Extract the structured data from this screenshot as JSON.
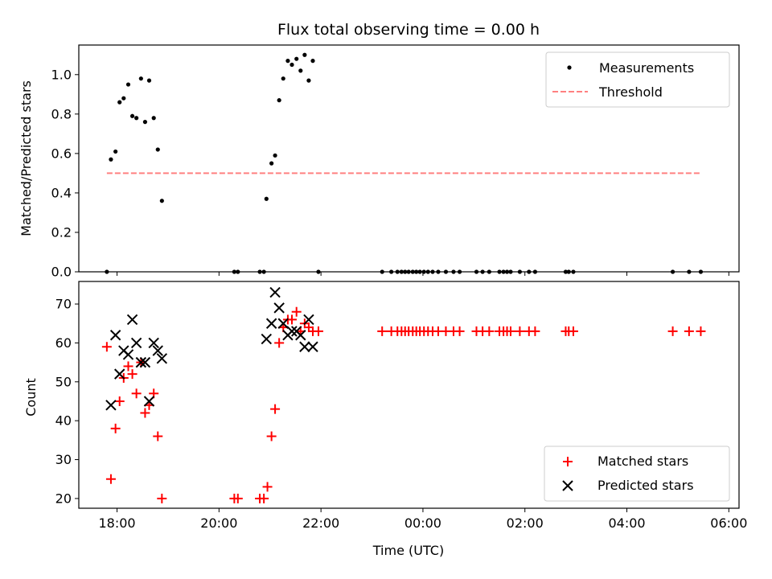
{
  "chart_data": [
    {
      "type": "scatter",
      "title": "Flux total observing time = 0.00 h",
      "xlabel": "",
      "ylabel": "Matched/Predicted stars",
      "xlim": [
        -0.75,
        12.2
      ],
      "ylim": [
        0.0,
        1.15
      ],
      "yticks": [
        0.0,
        0.2,
        0.4,
        0.6,
        0.8,
        1.0
      ],
      "ytick_labels": [
        "0.0",
        "0.2",
        "0.4",
        "0.6",
        "0.8",
        "1.0"
      ],
      "legend_position": "top-right",
      "series": [
        {
          "name": "Measurements",
          "marker": "dot",
          "color": "#000000",
          "points": [
            [
              -0.2,
              0.0
            ],
            [
              -0.12,
              0.57
            ],
            [
              -0.03,
              0.61
            ],
            [
              0.05,
              0.86
            ],
            [
              0.13,
              0.88
            ],
            [
              0.22,
              0.95
            ],
            [
              0.3,
              0.79
            ],
            [
              0.38,
              0.78
            ],
            [
              0.47,
              0.98
            ],
            [
              0.55,
              0.76
            ],
            [
              0.63,
              0.97
            ],
            [
              0.72,
              0.78
            ],
            [
              0.8,
              0.62
            ],
            [
              0.88,
              0.36
            ],
            [
              2.3,
              0.0
            ],
            [
              2.37,
              0.0
            ],
            [
              2.8,
              0.0
            ],
            [
              2.88,
              0.0
            ],
            [
              2.93,
              0.37
            ],
            [
              3.03,
              0.55
            ],
            [
              3.1,
              0.59
            ],
            [
              3.18,
              0.87
            ],
            [
              3.26,
              0.98
            ],
            [
              3.35,
              1.07
            ],
            [
              3.43,
              1.05
            ],
            [
              3.52,
              1.08
            ],
            [
              3.6,
              1.02
            ],
            [
              3.68,
              1.1
            ],
            [
              3.76,
              0.97
            ],
            [
              3.84,
              1.07
            ],
            [
              3.95,
              0.0
            ],
            [
              5.2,
              0.0
            ],
            [
              5.38,
              0.0
            ],
            [
              5.5,
              0.0
            ],
            [
              5.58,
              0.0
            ],
            [
              5.65,
              0.0
            ],
            [
              5.72,
              0.0
            ],
            [
              5.8,
              0.0
            ],
            [
              5.87,
              0.0
            ],
            [
              5.94,
              0.0
            ],
            [
              6.02,
              0.0
            ],
            [
              6.1,
              0.0
            ],
            [
              6.19,
              0.0
            ],
            [
              6.3,
              0.0
            ],
            [
              6.45,
              0.0
            ],
            [
              6.6,
              0.0
            ],
            [
              6.72,
              0.0
            ],
            [
              7.05,
              0.0
            ],
            [
              7.17,
              0.0
            ],
            [
              7.3,
              0.0
            ],
            [
              7.5,
              0.0
            ],
            [
              7.58,
              0.0
            ],
            [
              7.65,
              0.0
            ],
            [
              7.72,
              0.0
            ],
            [
              7.9,
              0.0
            ],
            [
              8.08,
              0.0
            ],
            [
              8.2,
              0.0
            ],
            [
              8.8,
              0.0
            ],
            [
              8.86,
              0.0
            ],
            [
              8.95,
              0.0
            ],
            [
              10.9,
              0.0
            ],
            [
              11.22,
              0.0
            ],
            [
              11.45,
              0.0
            ]
          ]
        },
        {
          "name": "Threshold",
          "marker": "dashed-line",
          "color": "#ff8080",
          "points": [
            [
              -0.2,
              0.5
            ],
            [
              11.45,
              0.5
            ]
          ]
        }
      ]
    },
    {
      "type": "scatter",
      "title": "",
      "xlabel": "Time (UTC)",
      "ylabel": "Count",
      "xlim": [
        -0.75,
        12.2
      ],
      "ylim": [
        17.5,
        75.8
      ],
      "xticks": [
        0,
        2,
        4,
        6,
        8,
        10,
        12
      ],
      "xtick_labels": [
        "18:00",
        "20:00",
        "22:00",
        "00:00",
        "02:00",
        "04:00",
        "06:00"
      ],
      "yticks": [
        20,
        30,
        40,
        50,
        60,
        70
      ],
      "ytick_labels": [
        "20",
        "30",
        "40",
        "50",
        "60",
        "70"
      ],
      "legend_position": "bottom-right",
      "series": [
        {
          "name": "Matched stars",
          "marker": "plus",
          "color": "#ff0000",
          "points": [
            [
              -0.2,
              59
            ],
            [
              -0.12,
              25
            ],
            [
              -0.03,
              38
            ],
            [
              0.05,
              45
            ],
            [
              0.13,
              51
            ],
            [
              0.22,
              54
            ],
            [
              0.3,
              52
            ],
            [
              0.38,
              47
            ],
            [
              0.47,
              55
            ],
            [
              0.55,
              42
            ],
            [
              0.63,
              44
            ],
            [
              0.72,
              47
            ],
            [
              0.8,
              36
            ],
            [
              0.88,
              20
            ],
            [
              2.3,
              20
            ],
            [
              2.37,
              20
            ],
            [
              2.8,
              20
            ],
            [
              2.88,
              20
            ],
            [
              2.95,
              23
            ],
            [
              3.03,
              36
            ],
            [
              3.1,
              43
            ],
            [
              3.18,
              60
            ],
            [
              3.26,
              64
            ],
            [
              3.35,
              66
            ],
            [
              3.43,
              66
            ],
            [
              3.52,
              68
            ],
            [
              3.6,
              63
            ],
            [
              3.68,
              65
            ],
            [
              3.76,
              64
            ],
            [
              3.84,
              63
            ],
            [
              3.95,
              63
            ],
            [
              5.2,
              63
            ],
            [
              5.38,
              63
            ],
            [
              5.5,
              63
            ],
            [
              5.58,
              63
            ],
            [
              5.65,
              63
            ],
            [
              5.72,
              63
            ],
            [
              5.8,
              63
            ],
            [
              5.87,
              63
            ],
            [
              5.94,
              63
            ],
            [
              6.02,
              63
            ],
            [
              6.1,
              63
            ],
            [
              6.19,
              63
            ],
            [
              6.3,
              63
            ],
            [
              6.45,
              63
            ],
            [
              6.6,
              63
            ],
            [
              6.72,
              63
            ],
            [
              7.05,
              63
            ],
            [
              7.17,
              63
            ],
            [
              7.3,
              63
            ],
            [
              7.5,
              63
            ],
            [
              7.58,
              63
            ],
            [
              7.65,
              63
            ],
            [
              7.72,
              63
            ],
            [
              7.9,
              63
            ],
            [
              8.08,
              63
            ],
            [
              8.2,
              63
            ],
            [
              8.8,
              63
            ],
            [
              8.86,
              63
            ],
            [
              8.95,
              63
            ],
            [
              10.9,
              63
            ],
            [
              11.22,
              63
            ],
            [
              11.45,
              63
            ]
          ]
        },
        {
          "name": "Predicted stars",
          "marker": "x",
          "color": "#000000",
          "points": [
            [
              -0.12,
              44
            ],
            [
              -0.03,
              62
            ],
            [
              0.05,
              52
            ],
            [
              0.13,
              58
            ],
            [
              0.22,
              57
            ],
            [
              0.3,
              66
            ],
            [
              0.38,
              60
            ],
            [
              0.47,
              55
            ],
            [
              0.55,
              55
            ],
            [
              0.63,
              45
            ],
            [
              0.72,
              60
            ],
            [
              0.8,
              58
            ],
            [
              0.88,
              56
            ],
            [
              2.93,
              61
            ],
            [
              3.03,
              65
            ],
            [
              3.1,
              73
            ],
            [
              3.18,
              69
            ],
            [
              3.26,
              65
            ],
            [
              3.35,
              62
            ],
            [
              3.43,
              63
            ],
            [
              3.52,
              63
            ],
            [
              3.6,
              62
            ],
            [
              3.68,
              59
            ],
            [
              3.76,
              66
            ],
            [
              3.84,
              59
            ]
          ]
        }
      ]
    }
  ]
}
